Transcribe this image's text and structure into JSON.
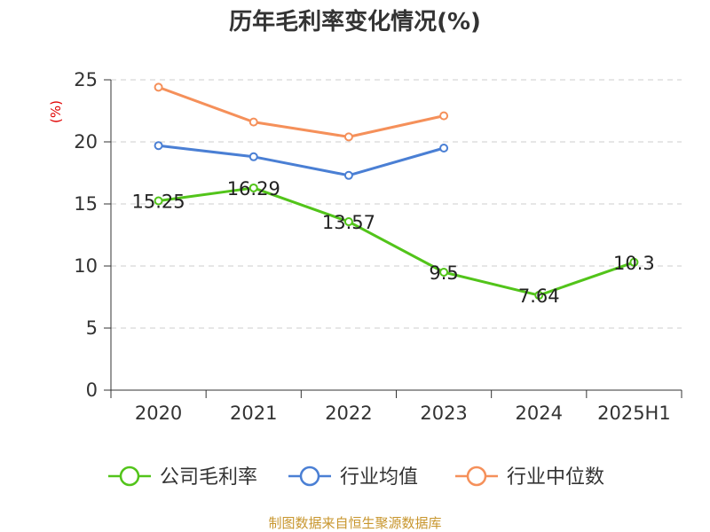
{
  "title": "历年毛利率变化情况(%)",
  "unit_label": "(%)",
  "source": "制图数据来自恒生聚源数据库",
  "colors": {
    "company": "#52c41a",
    "industry_avg": "#4a7fd4",
    "industry_median": "#f5905a",
    "grid": "#cccccc",
    "axis": "#333333"
  },
  "chart_data": {
    "type": "line",
    "title": "历年毛利率变化情况(%)",
    "xlabel": "",
    "ylabel": "(%)",
    "categories": [
      "2020",
      "2021",
      "2022",
      "2023",
      "2024",
      "2025H1"
    ],
    "ylim": [
      0,
      25
    ],
    "yticks": [
      0,
      5,
      10,
      15,
      20,
      25
    ],
    "grid": "horizontal dashed",
    "legend_position": "bottom",
    "series": [
      {
        "name": "公司毛利率",
        "color": "#52c41a",
        "values": [
          15.25,
          16.29,
          13.57,
          9.5,
          7.64,
          10.3
        ],
        "labels": [
          "15.25",
          "16.29",
          "13.57",
          "9.5",
          "7.64",
          "10.3"
        ]
      },
      {
        "name": "行业均值",
        "color": "#4a7fd4",
        "values": [
          19.7,
          18.8,
          17.3,
          19.5,
          null,
          null
        ]
      },
      {
        "name": "行业中位数",
        "color": "#f5905a",
        "values": [
          24.4,
          21.6,
          20.4,
          22.1,
          null,
          null
        ]
      }
    ]
  }
}
